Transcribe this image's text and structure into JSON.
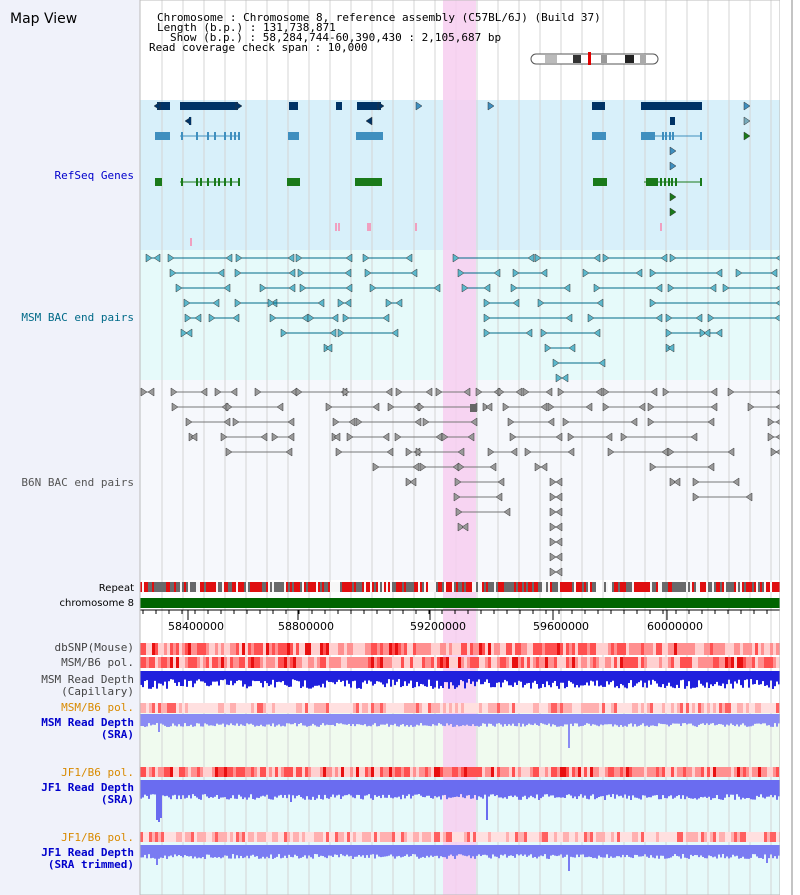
{
  "title": "Map View",
  "info": {
    "chromosome": "Chromosome    : Chromosome 8, reference assembly (C57BL/6J) (Build 37)",
    "length": "Length (b.p.) : 131,738,871",
    "show": "Show (b.p.) : 58,284,744-60,390,430 : 2,105,687 bp",
    "span": "Read coverage check span : 10,000"
  },
  "tracks": {
    "refseq": "RefSeq Genes",
    "msm_bac": "MSM BAC end pairs",
    "b6n_bac": "B6N BAC end pairs",
    "repeat": "Repeat",
    "chromosome": "chromosome 8",
    "dbsnp": "dbSNP(Mouse)",
    "msm_b6_pol_1": "MSM/B6 pol.",
    "msm_depth_cap_1": "MSM Read Depth",
    "msm_depth_cap_2": "(Capillary)",
    "msm_b6_pol_2": "MSM/B6 pol.",
    "msm_depth_sra_1": "MSM Read Depth",
    "msm_depth_sra_2": "(SRA)",
    "jf1_b6_pol_1": "JF1/B6 pol.",
    "jf1_depth_sra_1": "JF1 Read Depth",
    "jf1_depth_sra_2": "(SRA)",
    "jf1_b6_pol_2": "JF1/B6 pol.",
    "jf1_depth_trim_1": "JF1 Read Depth",
    "jf1_depth_trim_2": "(SRA trimmed)"
  },
  "axis_ticks": [
    "58400000",
    "58800000",
    "59200000",
    "59600000",
    "60000000"
  ],
  "colors": {
    "refseq_bg": "#d8f0fa",
    "bac_bg": "#e6fafa",
    "highlight": "#f7cef0",
    "label_blue": "#0000cc",
    "label_teal": "#006a88",
    "label_grey": "#555555",
    "label_orange": "#d88a00",
    "refseq_dark": "#003366",
    "refseq_mid": "#3f8fbf",
    "refseq_green": "#1a7a1a",
    "chromosome_green": "#006400"
  }
}
